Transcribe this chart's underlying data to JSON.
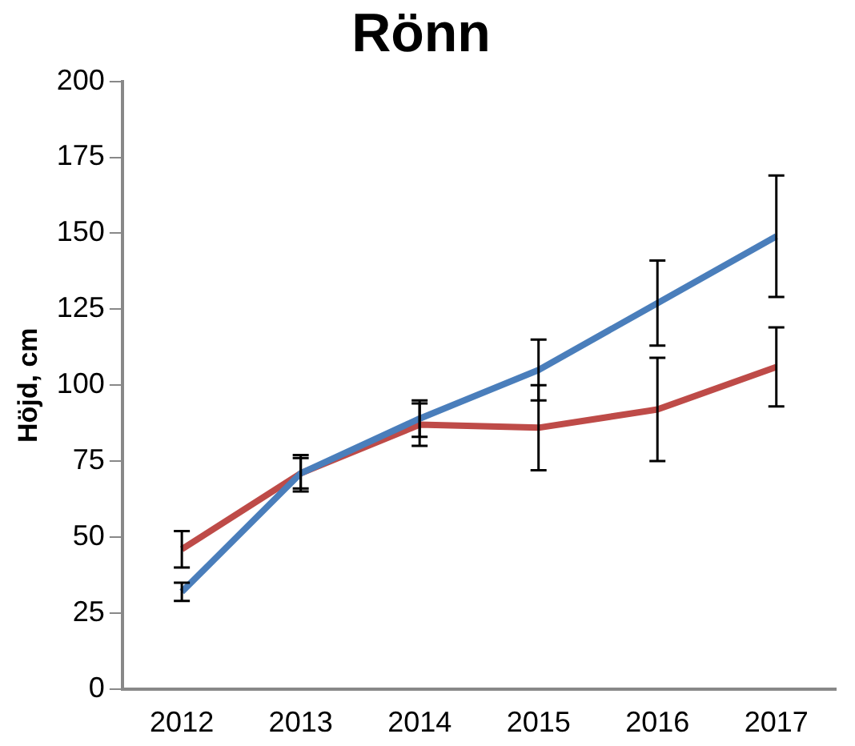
{
  "chart_data": {
    "type": "line",
    "title": "Rönn",
    "ylabel": "Höjd, cm",
    "categories": [
      "2012",
      "2013",
      "2014",
      "2015",
      "2016",
      "2017"
    ],
    "series": [
      {
        "color": "#4a7ebb",
        "values": [
          32,
          71,
          89,
          105,
          127,
          149
        ],
        "errors": [
          3,
          6,
          6,
          10,
          14,
          20
        ]
      },
      {
        "color": "#be4b48",
        "values": [
          46,
          71,
          87,
          86,
          92,
          106
        ],
        "errors": [
          6,
          5,
          7,
          14,
          17,
          13
        ]
      }
    ],
    "ylim": [
      0,
      200
    ],
    "yticks": [
      0,
      25,
      50,
      75,
      100,
      125,
      150,
      175,
      200
    ],
    "grid": false,
    "legend": false,
    "marker": "none",
    "line_style": "solid"
  }
}
